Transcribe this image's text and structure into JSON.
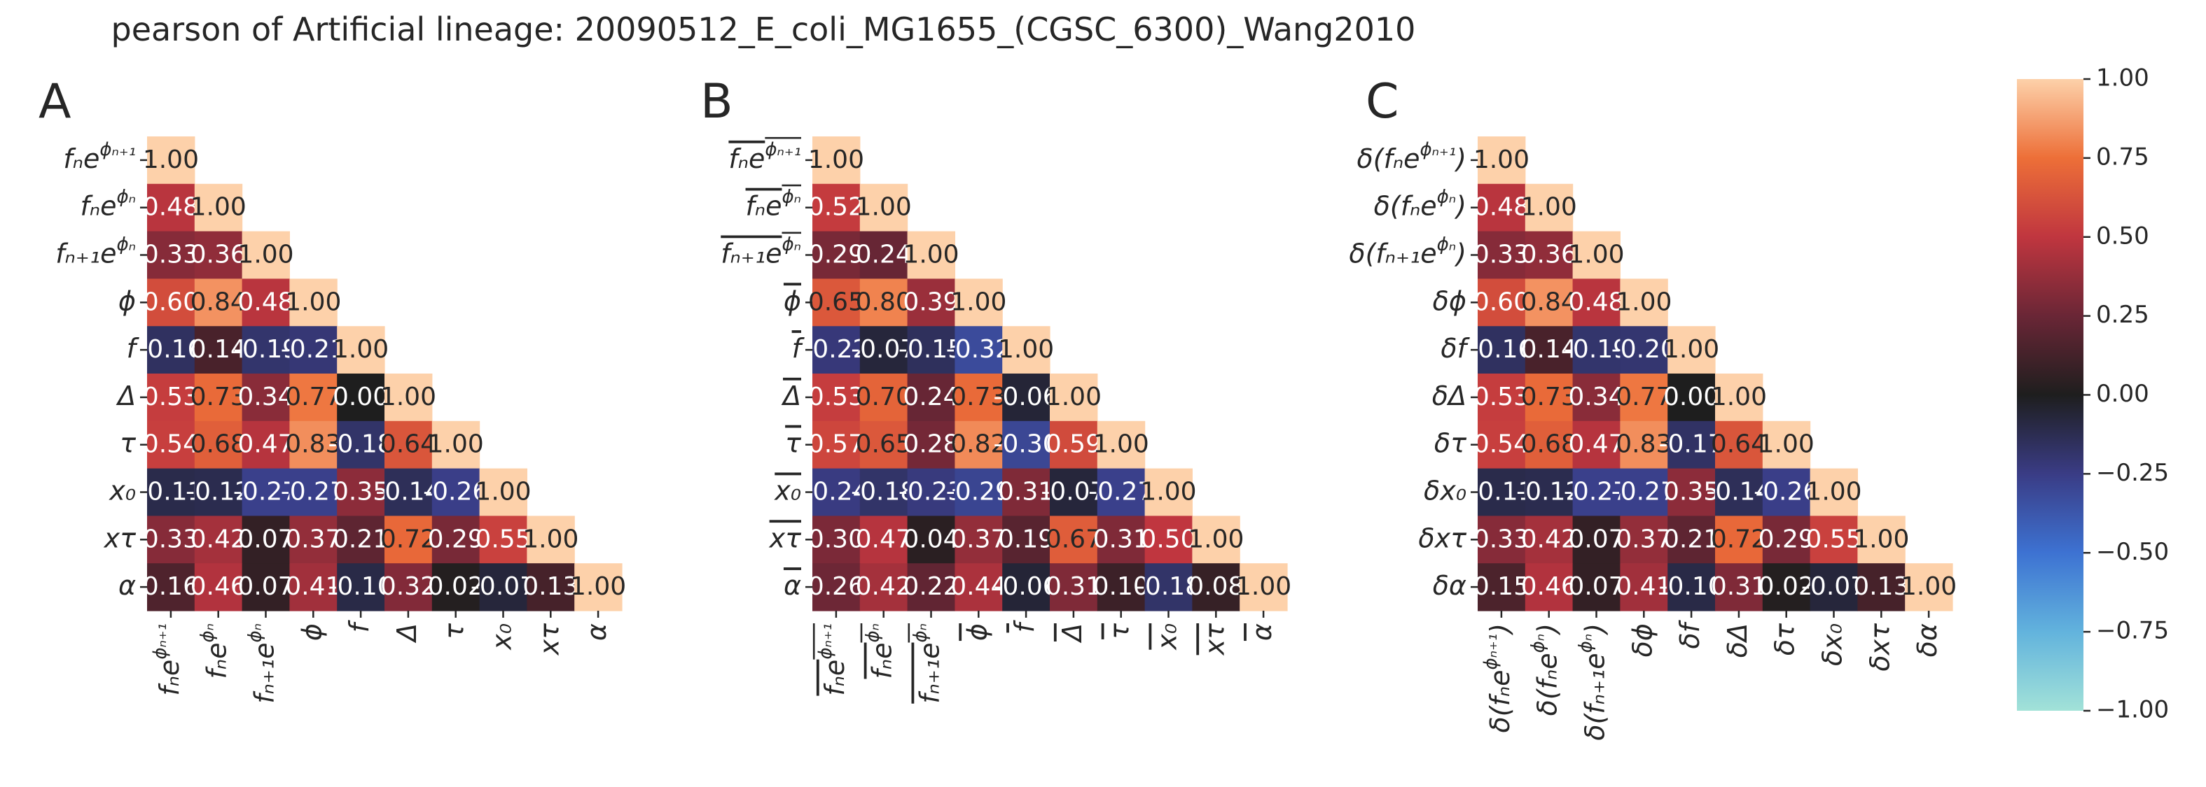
{
  "title": "pearson of Artificial lineage: 20090512_E_coli_MG1655_(CGSC_6300)_Wang2010",
  "chart_data": [
    {
      "type": "heatmap",
      "panel": "A",
      "labels": [
        "fₙe^{ϕₙ₊₁}",
        "fₙe^{ϕₙ}",
        "fₙ₊₁e^{ϕₙ}",
        "ϕ",
        "f",
        "Δ",
        "τ",
        "x₀",
        "xτ",
        "α"
      ],
      "label_parts": [
        {
          "base": "fₙe",
          "sup": "ϕₙ₊₁"
        },
        {
          "base": "fₙe",
          "sup": "ϕₙ"
        },
        {
          "base": "fₙ₊₁e",
          "sup": "ϕₙ"
        },
        {
          "base": "ϕ",
          "sup": ""
        },
        {
          "base": "f",
          "sup": ""
        },
        {
          "base": "Δ",
          "sup": ""
        },
        {
          "base": "τ",
          "sup": ""
        },
        {
          "base": "x₀",
          "sup": ""
        },
        {
          "base": "xτ",
          "sup": ""
        },
        {
          "base": "α",
          "sup": ""
        }
      ],
      "values": [
        [
          1.0
        ],
        [
          0.48,
          1.0
        ],
        [
          0.33,
          0.36,
          1.0
        ],
        [
          0.6,
          0.84,
          0.48,
          1.0
        ],
        [
          -0.16,
          0.14,
          -0.19,
          -0.21,
          1.0
        ],
        [
          0.53,
          0.73,
          0.34,
          0.77,
          0.0,
          1.0
        ],
        [
          0.54,
          0.68,
          0.47,
          0.83,
          -0.18,
          0.64,
          1.0
        ],
        [
          -0.11,
          -0.12,
          -0.27,
          -0.27,
          0.35,
          -0.14,
          -0.26,
          1.0
        ],
        [
          0.33,
          0.42,
          0.07,
          0.37,
          0.21,
          0.72,
          0.29,
          0.55,
          1.0
        ],
        [
          0.16,
          0.46,
          0.07,
          0.41,
          -0.1,
          0.32,
          0.02,
          -0.07,
          0.13,
          1.0
        ]
      ]
    },
    {
      "type": "heatmap",
      "panel": "B",
      "labels": [
        "‾fe^{ϕₙ₊₁}",
        "‾fe^{ϕₙ}",
        "‾fₙ₊₁e^{ϕₙ}",
        "ϕ̅",
        "f̅",
        "Δ̅",
        "τ̅",
        "x̅₀",
        "x̅τ",
        "α̅"
      ],
      "label_parts": [
        {
          "base": "fₙe",
          "sup": "ϕₙ₊₁",
          "overline": true
        },
        {
          "base": "fₙe",
          "sup": "ϕₙ",
          "overline": true
        },
        {
          "base": "fₙ₊₁e",
          "sup": "ϕₙ",
          "overline": true
        },
        {
          "base": "ϕ",
          "sup": "",
          "overline": true
        },
        {
          "base": "f",
          "sup": "",
          "overline": true
        },
        {
          "base": "Δ",
          "sup": "",
          "overline": true
        },
        {
          "base": "τ",
          "sup": "",
          "overline": true
        },
        {
          "base": "x₀",
          "sup": "",
          "overline": true
        },
        {
          "base": "xτ",
          "sup": "",
          "overline": true
        },
        {
          "base": "α",
          "sup": "",
          "overline": true
        }
      ],
      "values": [
        [
          1.0
        ],
        [
          0.52,
          1.0
        ],
        [
          0.29,
          0.24,
          1.0
        ],
        [
          0.65,
          0.8,
          0.39,
          1.0
        ],
        [
          -0.22,
          -0.07,
          -0.15,
          -0.32,
          1.0
        ],
        [
          0.53,
          0.7,
          0.24,
          0.73,
          -0.06,
          1.0
        ],
        [
          0.57,
          0.65,
          0.28,
          0.82,
          -0.3,
          0.59,
          1.0
        ],
        [
          -0.24,
          -0.18,
          -0.23,
          -0.29,
          0.31,
          -0.07,
          -0.27,
          1.0
        ],
        [
          0.3,
          0.47,
          0.04,
          0.37,
          0.19,
          0.67,
          0.31,
          0.5,
          1.0
        ],
        [
          0.26,
          0.42,
          0.22,
          0.44,
          -0.06,
          0.31,
          0.1,
          -0.18,
          0.08,
          1.0
        ]
      ]
    },
    {
      "type": "heatmap",
      "panel": "C",
      "labels": [
        "δ(fₙe^{ϕₙ₊₁})",
        "δ(fₙe^{ϕₙ})",
        "δ(fₙ₊₁e^{ϕₙ})",
        "δϕ",
        "δf",
        "δΔ",
        "δτ",
        "δx₀",
        "δxτ",
        "δα"
      ],
      "label_parts": [
        {
          "base": "δ(fₙe",
          "sup": "ϕₙ₊₁",
          "tail": ")"
        },
        {
          "base": "δ(fₙe",
          "sup": "ϕₙ",
          "tail": ")"
        },
        {
          "base": "δ(fₙ₊₁e",
          "sup": "ϕₙ",
          "tail": ")"
        },
        {
          "base": "δϕ",
          "sup": ""
        },
        {
          "base": "δf",
          "sup": ""
        },
        {
          "base": "δΔ",
          "sup": ""
        },
        {
          "base": "δτ",
          "sup": ""
        },
        {
          "base": "δx₀",
          "sup": ""
        },
        {
          "base": "δxτ",
          "sup": ""
        },
        {
          "base": "δα",
          "sup": ""
        }
      ],
      "values": [
        [
          1.0
        ],
        [
          0.48,
          1.0
        ],
        [
          0.33,
          0.36,
          1.0
        ],
        [
          0.6,
          0.84,
          0.48,
          1.0
        ],
        [
          -0.16,
          0.14,
          -0.19,
          -0.2,
          1.0
        ],
        [
          0.53,
          0.73,
          0.34,
          0.77,
          0.0,
          1.0
        ],
        [
          0.54,
          0.68,
          0.47,
          0.83,
          -0.17,
          0.64,
          1.0
        ],
        [
          -0.11,
          -0.12,
          -0.27,
          -0.27,
          0.35,
          -0.14,
          -0.26,
          1.0
        ],
        [
          0.33,
          0.42,
          0.07,
          0.37,
          0.21,
          0.72,
          0.29,
          0.55,
          1.0
        ],
        [
          0.15,
          0.46,
          0.07,
          0.41,
          -0.1,
          0.31,
          0.02,
          -0.07,
          0.13,
          1.0
        ]
      ]
    }
  ],
  "colorbar": {
    "range": [
      -1.0,
      1.0
    ],
    "ticks": [
      "1.00",
      "0.75",
      "0.50",
      "0.25",
      "0.00",
      "−0.25",
      "−0.50",
      "−0.75",
      "−1.00"
    ],
    "tick_values": [
      1.0,
      0.75,
      0.5,
      0.25,
      0.0,
      -0.25,
      -0.5,
      -0.75,
      -1.0
    ],
    "colormap": "icefire",
    "colors": [
      {
        "v": -1.0,
        "c": "#a2e2d8"
      },
      {
        "v": -0.75,
        "c": "#62b3dd"
      },
      {
        "v": -0.5,
        "c": "#3d72d2"
      },
      {
        "v": -0.25,
        "c": "#3a3c85"
      },
      {
        "v": 0.0,
        "c": "#1e1e1e"
      },
      {
        "v": 0.25,
        "c": "#6a2636"
      },
      {
        "v": 0.5,
        "c": "#c0363f"
      },
      {
        "v": 0.75,
        "c": "#ed6f38"
      },
      {
        "v": 1.0,
        "c": "#fdd1aa"
      }
    ]
  }
}
